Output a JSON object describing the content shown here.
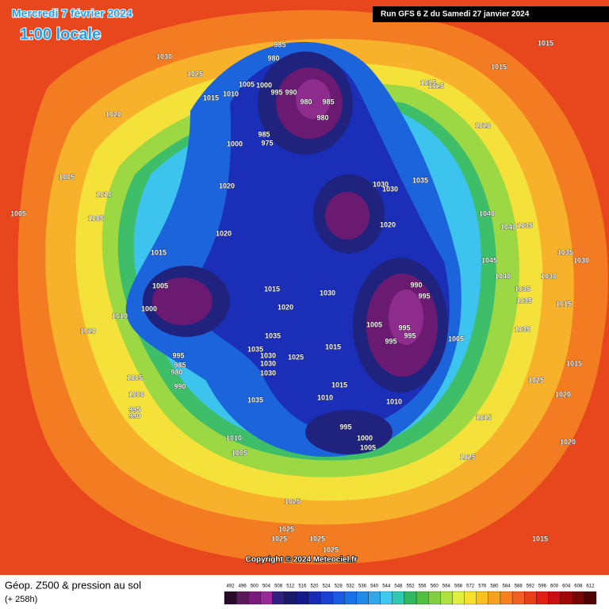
{
  "header": {
    "date": "Mercredi 7 février 2024",
    "time": "1:00 locale",
    "run": "Run GFS 6 Z du Samedi 27 janvier 2024"
  },
  "copyright": "Copyright © 2024 Meteociel.fr",
  "footer": {
    "title": "Géop. Z500 & pression au sol",
    "lead": "(+ 258h)"
  },
  "colorbar": {
    "ticks": [
      492,
      496,
      500,
      504,
      508,
      512,
      516,
      520,
      524,
      528,
      532,
      536,
      540,
      544,
      548,
      552,
      556,
      560,
      564,
      568,
      572,
      576,
      580,
      584,
      588,
      592,
      596,
      600,
      604,
      608,
      612
    ],
    "colors": [
      "#2a0a2a",
      "#5a1a5a",
      "#7a1a7a",
      "#9a2a9a",
      "#302080",
      "#1a1a6a",
      "#141a8a",
      "#1a2ab8",
      "#1a40d0",
      "#1a5ae0",
      "#1a72e8",
      "#208ae8",
      "#30a8e8",
      "#40c8f0",
      "#30c8b0",
      "#30b860",
      "#50c040",
      "#80d040",
      "#b0e040",
      "#e0f040",
      "#f8e030",
      "#f8c020",
      "#f8a020",
      "#f88020",
      "#f06020",
      "#e84018",
      "#e02010",
      "#c81010",
      "#a00808",
      "#780404",
      "#500000"
    ]
  },
  "isobar_labels": [
    "1030",
    "1025",
    "1015",
    "1010",
    "1005",
    "1000",
    "995",
    "990",
    "985",
    "980",
    "980",
    "985",
    "980",
    "985",
    "975",
    "1000",
    "1020",
    "1005",
    "1010",
    "1005",
    "1005",
    "1020",
    "1020",
    "1015",
    "1005",
    "1000",
    "1010",
    "1020",
    "995",
    "985",
    "980",
    "990",
    "1005",
    "1000",
    "995",
    "990",
    "1015",
    "1020",
    "1035",
    "1035",
    "1030",
    "1030",
    "1030",
    "1025",
    "1035",
    "1030",
    "1015",
    "1015",
    "1010",
    "1005",
    "995",
    "995",
    "995",
    "990",
    "995",
    "1005",
    "1010",
    "995",
    "1000",
    "1005",
    "1010",
    "1005",
    "1035",
    "1030",
    "1030",
    "1020",
    "1015",
    "1025",
    "1020",
    "1015",
    "1015",
    "1040",
    "1040",
    "1035",
    "1045",
    "1040",
    "1035",
    "1035",
    "1030",
    "1030",
    "1035",
    "1015",
    "1035",
    "1025",
    "1020",
    "1015",
    "1015",
    "1020",
    "1025",
    "1025",
    "1025",
    "1025",
    "1025",
    "1025",
    "1015"
  ]
}
